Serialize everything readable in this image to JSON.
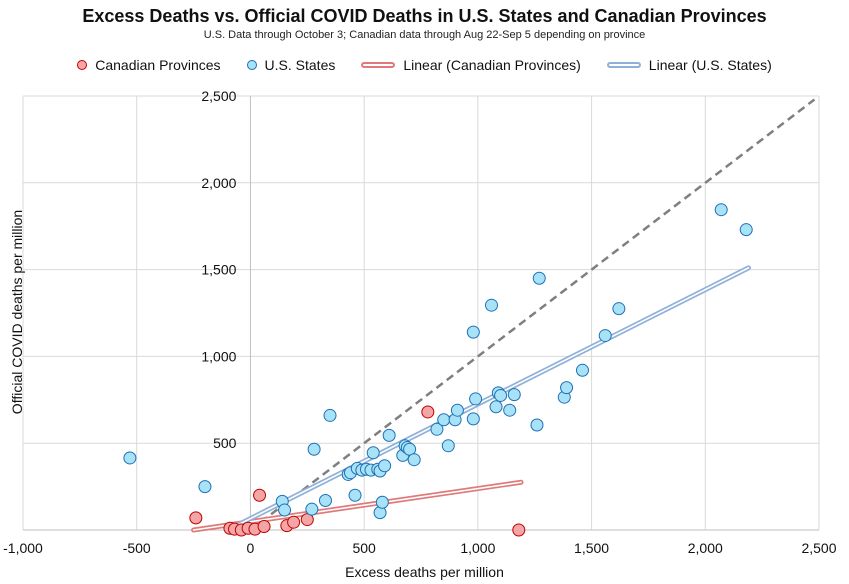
{
  "chart_data": {
    "type": "scatter",
    "title": "Excess Deaths vs. Official COVID Deaths in U.S. States and Canadian Provinces",
    "subtitle": "U.S. Data through October 3; Canadian data through Aug 22-Sep 5 depending on province",
    "xlabel": "Excess deaths per million",
    "ylabel": "Official COVID deaths per million",
    "xlim": [
      -1000,
      2500
    ],
    "ylim": [
      0,
      2500
    ],
    "x_ticks": [
      -1000,
      -500,
      0,
      500,
      1000,
      1500,
      2000,
      2500
    ],
    "y_ticks": [
      500,
      1000,
      1500,
      2000,
      2500
    ],
    "x_tick_labels": [
      "-1,000",
      "-500",
      "0",
      "500",
      "1,000",
      "1,500",
      "2,000",
      "2,500"
    ],
    "y_tick_labels": [
      "500",
      "1,000",
      "1,500",
      "2,000",
      "2,500"
    ],
    "grid": true,
    "legend_position": "top",
    "legend": [
      "Canadian Provinces",
      "U.S. States",
      "Linear (Canadian Provinces)",
      "Linear (U.S. States)"
    ],
    "colors": {
      "canada_fill": "#f4a6a6",
      "canada_edge": "#c00000",
      "us_fill": "#a8e2f7",
      "us_edge": "#1f6fb5",
      "canada_trend": "#e07a7a",
      "us_trend": "#8fb0d8",
      "reference": "#7f7f7f"
    },
    "series": [
      {
        "name": "Canadian Provinces",
        "points": [
          [
            -240,
            70
          ],
          [
            -90,
            10
          ],
          [
            -70,
            5
          ],
          [
            -40,
            0
          ],
          [
            -10,
            10
          ],
          [
            20,
            5
          ],
          [
            40,
            200
          ],
          [
            60,
            20
          ],
          [
            160,
            25
          ],
          [
            190,
            45
          ],
          [
            250,
            60
          ],
          [
            780,
            680
          ],
          [
            1180,
            0
          ]
        ]
      },
      {
        "name": "U.S. States",
        "points": [
          [
            -530,
            415
          ],
          [
            -200,
            250
          ],
          [
            140,
            165
          ],
          [
            150,
            115
          ],
          [
            270,
            120
          ],
          [
            280,
            465
          ],
          [
            330,
            170
          ],
          [
            350,
            660
          ],
          [
            430,
            320
          ],
          [
            440,
            330
          ],
          [
            460,
            200
          ],
          [
            470,
            355
          ],
          [
            490,
            345
          ],
          [
            510,
            350
          ],
          [
            530,
            345
          ],
          [
            540,
            445
          ],
          [
            560,
            350
          ],
          [
            570,
            340
          ],
          [
            570,
            100
          ],
          [
            580,
            160
          ],
          [
            590,
            370
          ],
          [
            610,
            545
          ],
          [
            670,
            430
          ],
          [
            680,
            485
          ],
          [
            690,
            475
          ],
          [
            700,
            465
          ],
          [
            720,
            405
          ],
          [
            820,
            580
          ],
          [
            850,
            635
          ],
          [
            870,
            485
          ],
          [
            900,
            635
          ],
          [
            910,
            690
          ],
          [
            980,
            640
          ],
          [
            980,
            1140
          ],
          [
            990,
            755
          ],
          [
            1060,
            1295
          ],
          [
            1080,
            710
          ],
          [
            1090,
            790
          ],
          [
            1100,
            775
          ],
          [
            1140,
            690
          ],
          [
            1160,
            780
          ],
          [
            1260,
            605
          ],
          [
            1270,
            1450
          ],
          [
            1380,
            765
          ],
          [
            1390,
            820
          ],
          [
            1460,
            920
          ],
          [
            1560,
            1120
          ],
          [
            1620,
            1275
          ],
          [
            2070,
            1845
          ],
          [
            2180,
            1730
          ]
        ]
      }
    ],
    "trendlines": [
      {
        "name": "Linear (Canadian Provinces)",
        "from": [
          -250,
          0
        ],
        "to": [
          1190,
          275
        ]
      },
      {
        "name": "Linear (U.S. States)",
        "from": [
          -100,
          0
        ],
        "to": [
          2190,
          1510
        ]
      }
    ],
    "reference_line": {
      "from": [
        0,
        0
      ],
      "to": [
        2480,
        2480
      ]
    }
  }
}
